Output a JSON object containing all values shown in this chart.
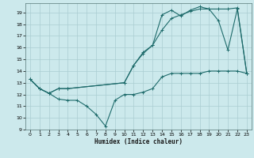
{
  "xlabel": "Humidex (Indice chaleur)",
  "bg_color": "#cce9ec",
  "grid_color": "#aacdd1",
  "line_color": "#1e6b6b",
  "xlim": [
    -0.5,
    23.5
  ],
  "ylim": [
    9,
    19.8
  ],
  "yticks": [
    9,
    10,
    11,
    12,
    13,
    14,
    15,
    16,
    17,
    18,
    19
  ],
  "xticks": [
    0,
    1,
    2,
    3,
    4,
    5,
    6,
    7,
    8,
    9,
    10,
    11,
    12,
    13,
    14,
    15,
    16,
    17,
    18,
    19,
    20,
    21,
    22,
    23
  ],
  "line1_x": [
    0,
    1,
    2,
    3,
    4,
    10,
    11,
    12,
    13,
    14,
    15,
    16,
    17,
    18,
    19,
    20,
    21,
    22,
    23
  ],
  "line1_y": [
    13.3,
    12.5,
    12.1,
    12.5,
    12.5,
    13.0,
    14.5,
    15.5,
    16.2,
    17.5,
    18.5,
    18.8,
    19.1,
    19.3,
    19.3,
    18.3,
    15.8,
    19.3,
    13.8
  ],
  "line2_x": [
    0,
    1,
    2,
    3,
    4,
    10,
    11,
    12,
    13,
    14,
    15,
    16,
    17,
    18,
    19,
    20,
    21,
    22,
    23
  ],
  "line2_y": [
    13.3,
    12.5,
    12.1,
    12.5,
    12.5,
    13.0,
    14.5,
    15.6,
    16.2,
    18.8,
    19.2,
    18.7,
    19.2,
    19.5,
    19.3,
    19.3,
    19.3,
    19.4,
    13.8
  ],
  "line3_x": [
    0,
    1,
    2,
    3,
    4,
    5,
    6,
    7,
    8,
    9,
    10,
    11,
    12,
    13,
    14,
    15,
    16,
    17,
    18,
    19,
    20,
    21,
    22,
    23
  ],
  "line3_y": [
    13.3,
    12.5,
    12.1,
    11.6,
    11.5,
    11.5,
    11.0,
    10.3,
    9.3,
    11.5,
    12.0,
    12.0,
    12.2,
    12.5,
    13.5,
    13.8,
    13.8,
    13.8,
    13.8,
    14.0,
    14.0,
    14.0,
    14.0,
    13.8
  ]
}
